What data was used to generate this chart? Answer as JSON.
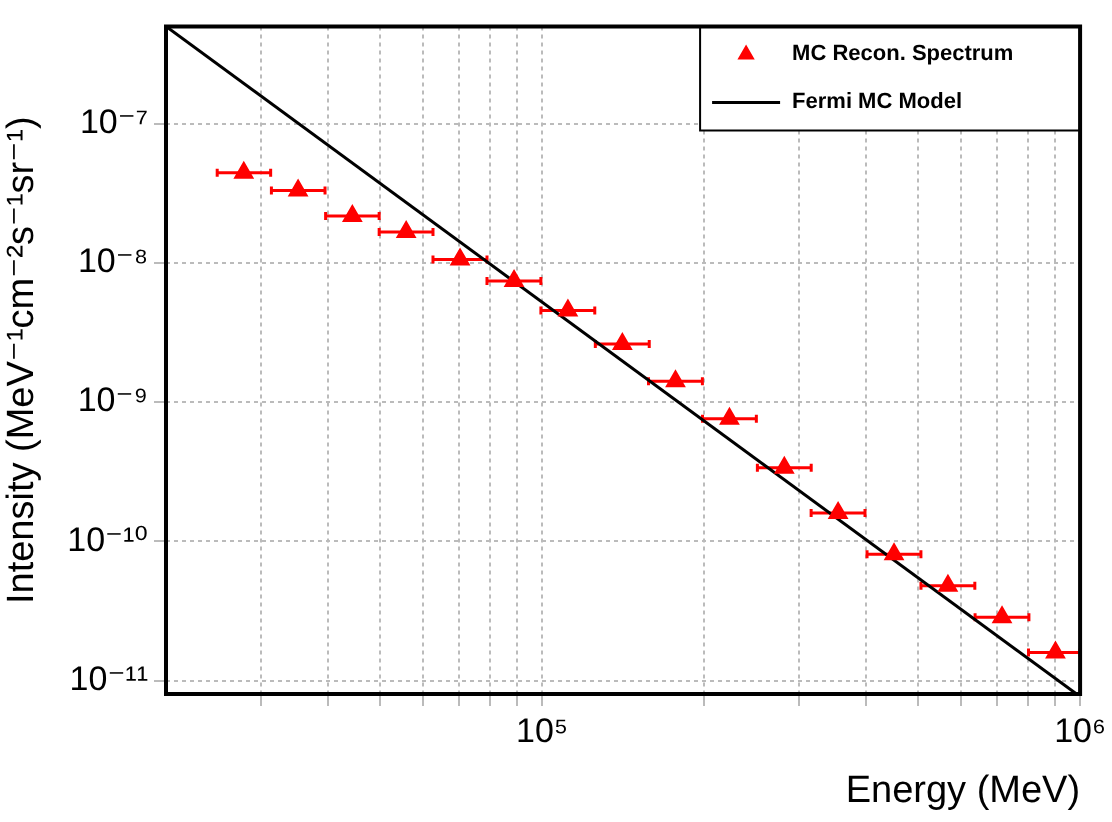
{
  "chart_data": {
    "type": "scatter",
    "xlabel": "Energy (MeV)",
    "ylabel": "Intensity (MeV⁻¹cm⁻²s⁻¹sr⁻¹)",
    "log": "xy",
    "grid": true,
    "legend": "top right",
    "xlim": [
      20000,
      1000000
    ],
    "ylim": [
      8e-12,
      5e-07
    ],
    "xticks": [
      {
        "value": 30000,
        "label": null
      },
      {
        "value": 40000,
        "label": null
      },
      {
        "value": 50000,
        "label": null
      },
      {
        "value": 60000,
        "label": null
      },
      {
        "value": 70000,
        "label": null
      },
      {
        "value": 80000,
        "label": null
      },
      {
        "value": 90000,
        "label": null
      },
      {
        "value": 100000,
        "label": "10⁵"
      },
      {
        "value": 200000,
        "label": null
      },
      {
        "value": 300000,
        "label": null
      },
      {
        "value": 400000,
        "label": null
      },
      {
        "value": 500000,
        "label": null
      },
      {
        "value": 600000,
        "label": null
      },
      {
        "value": 700000,
        "label": null
      },
      {
        "value": 800000,
        "label": null
      },
      {
        "value": 900000,
        "label": null
      },
      {
        "value": 1000000,
        "label": "10⁶"
      }
    ],
    "yticks": [
      {
        "value": 1e-11,
        "label": "10⁻¹¹"
      },
      {
        "value": 1e-10,
        "label": "10⁻¹⁰"
      },
      {
        "value": 1e-09,
        "label": "10⁻⁹"
      },
      {
        "value": 1e-08,
        "label": "10⁻⁸"
      },
      {
        "value": 1e-07,
        "label": "10⁻⁷"
      }
    ],
    "series": [
      {
        "name": "MC Recon. Spectrum",
        "marker": "triangle",
        "color": "#ff0000",
        "x": [
          27900,
          35200,
          44400,
          55900,
          70400,
          88700,
          111700,
          141000,
          177000,
          223000,
          282000,
          355000,
          451000,
          568000,
          716000,
          900000
        ],
        "values": [
          4.44e-08,
          3.31e-08,
          2.17e-08,
          1.67e-08,
          1.06e-08,
          7.41e-09,
          4.55e-09,
          2.62e-09,
          1.41e-09,
          7.6e-10,
          3.37e-10,
          1.6e-10,
          8.07e-11,
          4.8e-11,
          2.85e-11,
          1.59e-11
        ],
        "xerrors": [
          [
            24900,
            31300
          ],
          [
            31400,
            39500
          ],
          [
            39600,
            49800
          ],
          [
            49800,
            62700
          ],
          [
            62700,
            79000
          ],
          [
            79000,
            99500
          ],
          [
            99500,
            125300
          ],
          [
            125600,
            158200
          ],
          [
            157700,
            198600
          ],
          [
            198700,
            250200
          ],
          [
            251300,
            316400
          ],
          [
            316300,
            398300
          ],
          [
            401800,
            506000
          ],
          [
            506100,
            637300
          ],
          [
            638000,
            803300
          ],
          [
            801900,
            1000000
          ]
        ]
      },
      {
        "name": "Fermi MC Model",
        "type": "line",
        "marker": "none",
        "line_style": "solid",
        "color": "#000000",
        "x": [
          20000,
          985000
        ],
        "values": [
          5e-07,
          8e-12
        ]
      }
    ]
  }
}
